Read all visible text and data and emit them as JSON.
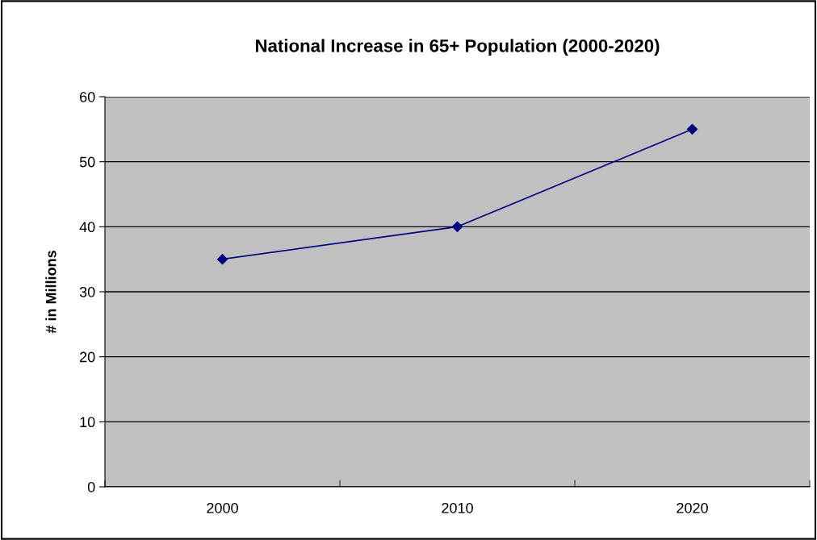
{
  "chart_data": {
    "type": "line",
    "title": "National Increase in 65+ Population (2000-2020)",
    "ylabel": "# in Millions",
    "categories": [
      "2000",
      "2010",
      "2020"
    ],
    "series": [
      {
        "color": "#000080",
        "values": [
          35,
          40,
          55
        ]
      }
    ],
    "ylim": [
      0,
      60
    ],
    "yticks": [
      0,
      10,
      20,
      30,
      40,
      50,
      60
    ],
    "grid": "y",
    "marker": "diamond",
    "line_style": "solid",
    "legend": false
  }
}
